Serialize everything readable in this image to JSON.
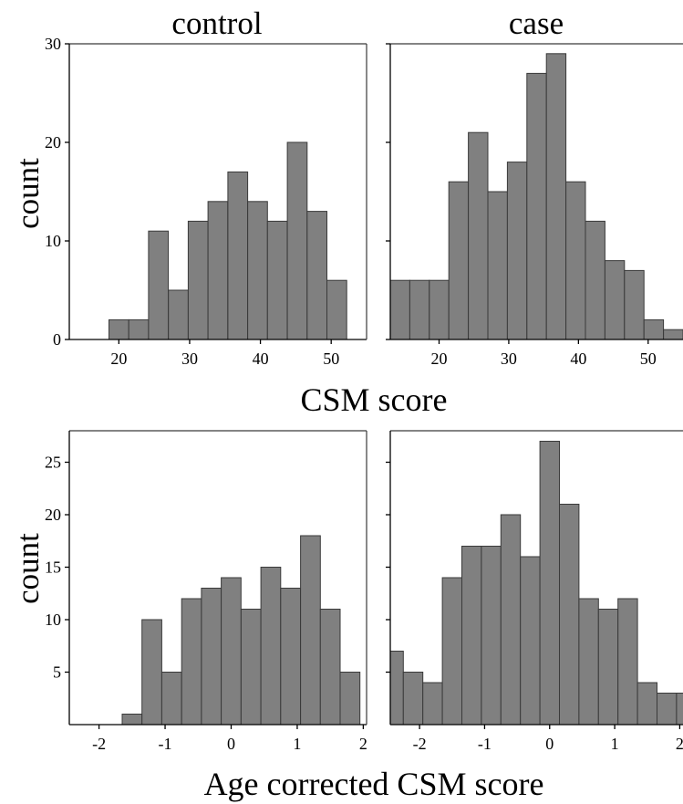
{
  "figure": {
    "facet_labels": [
      "control",
      "case"
    ],
    "row_xlabels": [
      "CSM score",
      "Age corrected CSM score"
    ]
  },
  "chart_data": [
    {
      "type": "bar",
      "subtype": "histogram",
      "panel": "control",
      "xlabel": "CSM score",
      "ylabel": "count",
      "xlim": [
        13,
        55
      ],
      "ylim": [
        0,
        30
      ],
      "xticks": [
        20,
        30,
        40,
        50
      ],
      "yticks": [
        0,
        10,
        20,
        30
      ],
      "bin_width": 2.8,
      "bin_starts": [
        18.6,
        21.4,
        24.2,
        27.0,
        29.8,
        32.6,
        35.4,
        38.2,
        41.0,
        43.8,
        46.6,
        49.4
      ],
      "values": [
        2,
        2,
        11,
        5,
        12,
        14,
        17,
        14,
        12,
        20,
        13,
        6
      ],
      "grid": false
    },
    {
      "type": "bar",
      "subtype": "histogram",
      "panel": "case",
      "xlabel": "CSM score",
      "ylabel": "count",
      "xlim": [
        13,
        55
      ],
      "ylim": [
        0,
        30
      ],
      "xticks": [
        20,
        30,
        40,
        50
      ],
      "yticks": [
        0,
        10,
        20,
        30
      ],
      "bin_width": 2.8,
      "bin_starts": [
        13.0,
        15.8,
        18.6,
        21.4,
        24.2,
        27.0,
        29.8,
        32.6,
        35.4,
        38.2,
        41.0,
        43.8,
        46.6,
        49.4,
        52.2
      ],
      "values": [
        6,
        6,
        6,
        16,
        21,
        15,
        18,
        27,
        29,
        16,
        12,
        8,
        7,
        2,
        1
      ],
      "grid": false
    },
    {
      "type": "bar",
      "subtype": "histogram",
      "panel": "control",
      "xlabel": "Age corrected CSM score",
      "ylabel": "count",
      "xlim": [
        -2.45,
        2.05
      ],
      "ylim": [
        0,
        28
      ],
      "xticks": [
        -2,
        -1,
        0,
        1,
        2
      ],
      "yticks": [
        5,
        10,
        15,
        20,
        25
      ],
      "bin_width": 0.3,
      "bin_starts": [
        -1.95,
        -1.65,
        -1.35,
        -1.05,
        -0.75,
        -0.45,
        -0.15,
        0.15,
        0.45,
        0.75,
        1.05,
        1.35,
        1.65
      ],
      "values": [
        0,
        1,
        10,
        5,
        12,
        13,
        14,
        11,
        15,
        13,
        18,
        11,
        5
      ],
      "grid": false
    },
    {
      "type": "bar",
      "subtype": "histogram",
      "panel": "case",
      "xlabel": "Age corrected CSM score",
      "ylabel": "count",
      "xlim": [
        -2.45,
        2.05
      ],
      "ylim": [
        0,
        28
      ],
      "xticks": [
        -2,
        -1,
        0,
        1,
        2
      ],
      "yticks": [
        5,
        10,
        15,
        20,
        25
      ],
      "bin_width": 0.3,
      "bin_starts": [
        -2.55,
        -2.25,
        -1.95,
        -1.65,
        -1.35,
        -1.05,
        -0.75,
        -0.45,
        -0.15,
        0.15,
        0.45,
        0.75,
        1.05,
        1.35,
        1.65,
        1.95
      ],
      "values": [
        7,
        5,
        4,
        14,
        17,
        17,
        20,
        16,
        27,
        21,
        12,
        11,
        12,
        4,
        3,
        3
      ],
      "grid": false
    }
  ]
}
